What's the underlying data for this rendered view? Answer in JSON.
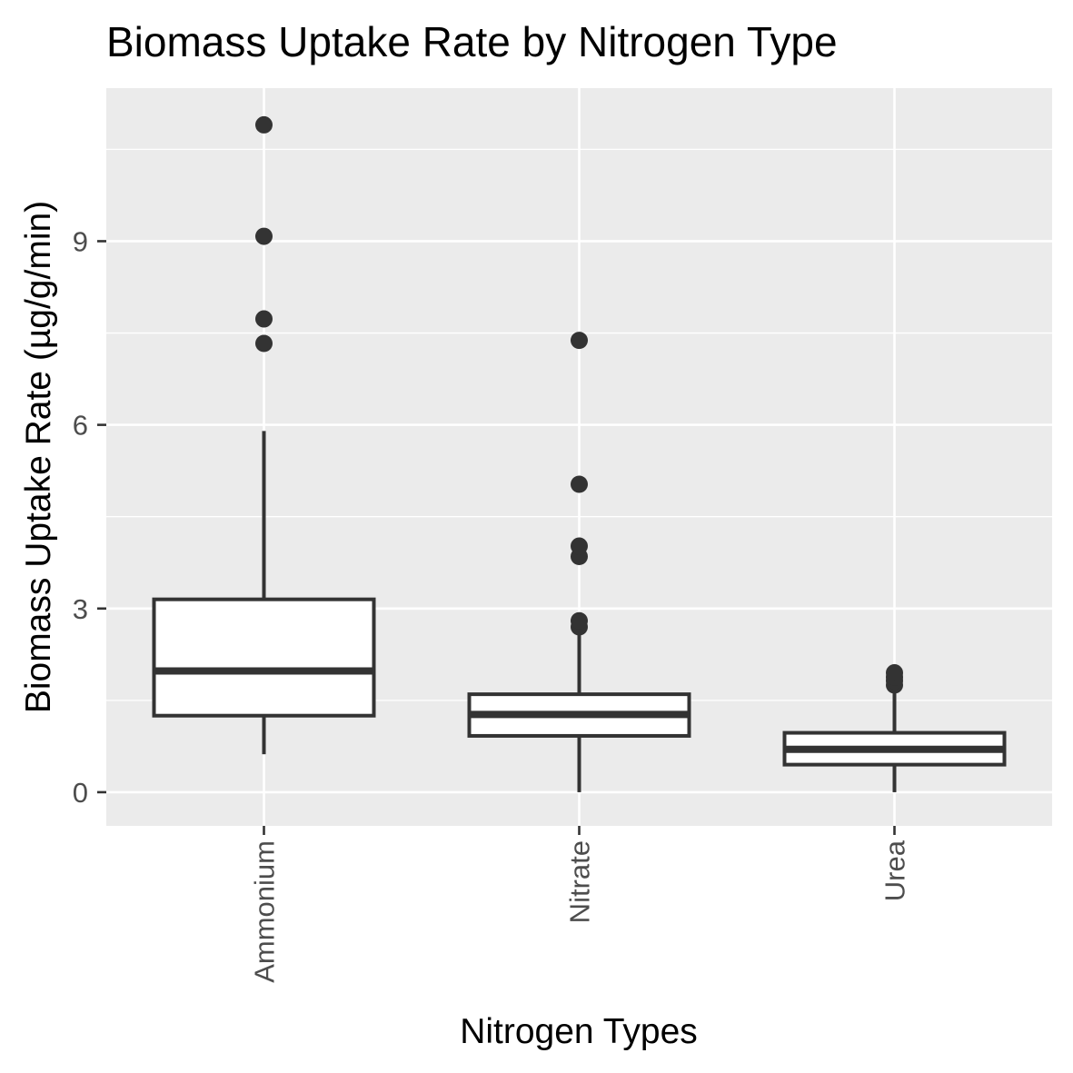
{
  "chart_data": {
    "type": "boxplot",
    "title": "Biomass Uptake Rate by Nitrogen Type",
    "xlabel": "Nitrogen Types",
    "ylabel": "Biomass Uptake Rate (µg/g/min)",
    "categories": [
      "Ammonium",
      "Nitrate",
      "Urea"
    ],
    "ylim": [
      -0.55,
      11.5
    ],
    "yticks": [
      0,
      3,
      6,
      9
    ],
    "grid": true,
    "boxes": [
      {
        "category": "Ammonium",
        "whisker_low": 0.62,
        "q1": 1.25,
        "median": 1.98,
        "q3": 3.15,
        "whisker_high": 5.9,
        "outliers": [
          7.33,
          7.73,
          9.08,
          10.9
        ]
      },
      {
        "category": "Nitrate",
        "whisker_low": 0.0,
        "q1": 0.92,
        "median": 1.27,
        "q3": 1.6,
        "whisker_high": 2.65,
        "outliers": [
          2.7,
          2.8,
          3.85,
          4.02,
          5.03,
          7.38
        ]
      },
      {
        "category": "Urea",
        "whisker_low": 0.0,
        "q1": 0.45,
        "median": 0.7,
        "q3": 0.97,
        "whisker_high": 1.65,
        "outliers": [
          1.75,
          1.82,
          1.88,
          1.95
        ]
      }
    ],
    "colors": {
      "panel": "#ebebeb",
      "grid": "#ffffff",
      "box_fill": "#ffffff",
      "box_line": "#333333",
      "tick": "#333333",
      "tick_label": "#4d4d4d"
    }
  }
}
